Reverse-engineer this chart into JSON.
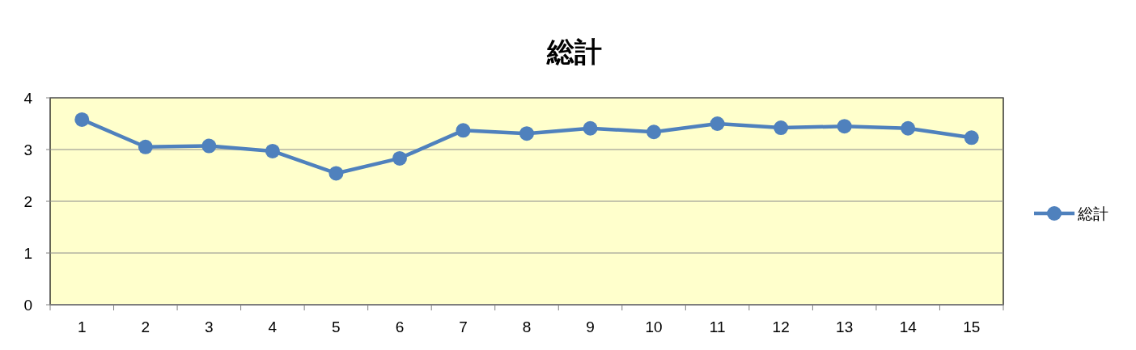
{
  "chart_data": {
    "type": "line",
    "title": "総計",
    "categories": [
      "1",
      "2",
      "3",
      "4",
      "5",
      "6",
      "7",
      "8",
      "9",
      "10",
      "11",
      "12",
      "13",
      "14",
      "15"
    ],
    "series": [
      {
        "name": "総計",
        "color": "#4f81bd",
        "values": [
          3.58,
          3.05,
          3.07,
          2.97,
          2.54,
          2.83,
          3.37,
          3.31,
          3.41,
          3.34,
          3.5,
          3.42,
          3.45,
          3.41,
          3.23
        ]
      }
    ],
    "ylim": [
      0,
      4
    ],
    "yticks": [
      0,
      1,
      2,
      3,
      4
    ],
    "grid": "y",
    "legend": "right",
    "marker": "circle",
    "line_style": "solid"
  }
}
